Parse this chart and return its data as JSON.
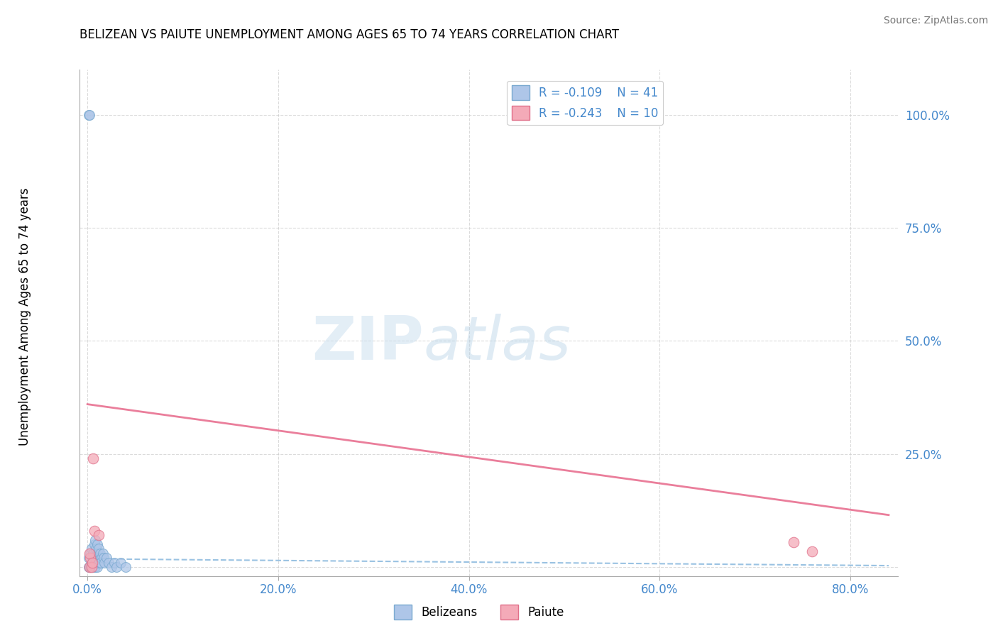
{
  "title": "BELIZEAN VS PAIUTE UNEMPLOYMENT AMONG AGES 65 TO 74 YEARS CORRELATION CHART",
  "source": "Source: ZipAtlas.com",
  "ylabel_label": "Unemployment Among Ages 65 to 74 years",
  "xlim": [
    -0.008,
    0.85
  ],
  "ylim": [
    -0.02,
    1.1
  ],
  "xticks": [
    0.0,
    0.2,
    0.4,
    0.6,
    0.8
  ],
  "xtick_labels": [
    "0.0%",
    "20.0%",
    "40.0%",
    "60.0%",
    "80.0%"
  ],
  "yticks": [
    0.0,
    0.25,
    0.5,
    0.75,
    1.0
  ],
  "ytick_labels": [
    "",
    "25.0%",
    "50.0%",
    "75.0%",
    "100.0%"
  ],
  "grid_color": "#cccccc",
  "background_color": "#ffffff",
  "watermark_zip": "ZIP",
  "watermark_atlas": "atlas",
  "legend_R_belizean": "-0.109",
  "legend_N_belizean": "41",
  "legend_R_paiute": "-0.243",
  "legend_N_paiute": "10",
  "belizean_color": "#aec6e8",
  "belizean_edge_color": "#7aaad0",
  "paiute_color": "#f4aab8",
  "paiute_edge_color": "#e0708a",
  "trend_belizean_color": "#88b8dd",
  "trend_paiute_color": "#e87090",
  "tick_color": "#4488cc",
  "belizean_x": [
    0.001,
    0.002,
    0.001,
    0.003,
    0.004,
    0.005,
    0.003,
    0.006,
    0.004,
    0.007,
    0.005,
    0.008,
    0.006,
    0.008,
    0.007,
    0.009,
    0.008,
    0.01,
    0.009,
    0.011,
    0.01,
    0.012,
    0.011,
    0.013,
    0.012,
    0.014,
    0.013,
    0.015,
    0.014,
    0.016,
    0.017,
    0.018,
    0.02,
    0.022,
    0.025,
    0.028,
    0.03,
    0.035,
    0.04,
    0.001,
    0.002
  ],
  "belizean_y": [
    0.0,
    0.0,
    0.02,
    0.0,
    0.0,
    0.0,
    0.03,
    0.01,
    0.04,
    0.0,
    0.02,
    0.01,
    0.03,
    0.0,
    0.05,
    0.01,
    0.06,
    0.0,
    0.04,
    0.02,
    0.05,
    0.01,
    0.03,
    0.02,
    0.04,
    0.01,
    0.03,
    0.02,
    0.01,
    0.03,
    0.02,
    0.01,
    0.02,
    0.01,
    0.0,
    0.01,
    0.0,
    0.01,
    0.0,
    1.0,
    1.0
  ],
  "paiute_x": [
    0.002,
    0.006,
    0.007,
    0.012,
    0.74,
    0.76,
    0.003,
    0.004,
    0.002,
    0.005
  ],
  "paiute_y": [
    0.0,
    0.24,
    0.08,
    0.07,
    0.055,
    0.035,
    0.02,
    0.0,
    0.03,
    0.01
  ],
  "belizean_trend_x0": 0.0,
  "belizean_trend_x1": 0.84,
  "belizean_trend_y0": 0.018,
  "belizean_trend_y1": 0.003,
  "paiute_trend_x0": 0.0,
  "paiute_trend_x1": 0.84,
  "paiute_trend_y0": 0.36,
  "paiute_trend_y1": 0.115
}
